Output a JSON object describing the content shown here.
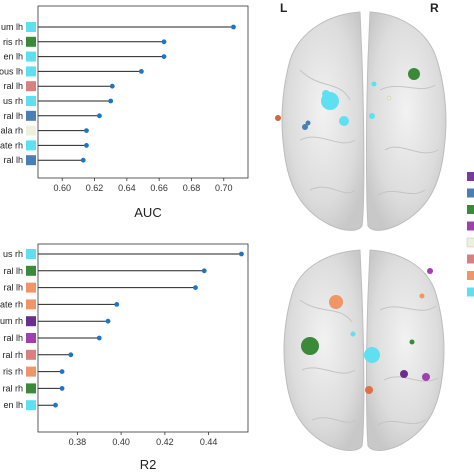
{
  "chart_data": [
    {
      "type": "lollipop",
      "xlabel": "AUC",
      "xlim": [
        0.585,
        0.715
      ],
      "xticks": [
        "0.60",
        "0.62",
        "0.64",
        "0.66",
        "0.68",
        "0.70"
      ],
      "xtick_values": [
        0.6,
        0.62,
        0.64,
        0.66,
        0.68,
        0.7
      ],
      "labels": [
        "um lh",
        "ris rh",
        "en lh",
        "ous lh",
        "ral lh",
        "us rh",
        "ral lh",
        "ala rh",
        "ate rh",
        "ral lh"
      ],
      "values": [
        0.706,
        0.663,
        0.663,
        0.649,
        0.631,
        0.63,
        0.623,
        0.615,
        0.615,
        0.613
      ],
      "swatch_colors": [
        "#5fe0f0",
        "#3a8a3a",
        "#5fe0f0",
        "#5fe0f0",
        "#d98080",
        "#5fe0f0",
        "#4a7fb5",
        "#ecf0dc",
        "#5fe0f0",
        "#4a7fb5"
      ],
      "point_color": "#1f74c6"
    },
    {
      "type": "lollipop",
      "xlabel": "R2",
      "xlim": [
        0.362,
        0.458
      ],
      "xticks": [
        "0.38",
        "0.40",
        "0.42",
        "0.44"
      ],
      "xtick_values": [
        0.38,
        0.4,
        0.42,
        0.44
      ],
      "labels": [
        "us rh",
        "ral lh",
        "ral lh",
        "ate rh",
        "um rh",
        "ral lh",
        "ral rh",
        "ris rh",
        "ral rh",
        "en lh"
      ],
      "values": [
        0.455,
        0.438,
        0.434,
        0.398,
        0.394,
        0.39,
        0.377,
        0.373,
        0.373,
        0.37
      ],
      "swatch_colors": [
        "#5fe0f0",
        "#3a8a3a",
        "#f0946a",
        "#f0946a",
        "#6a2f8a",
        "#a040b0",
        "#d98080",
        "#f0946a",
        "#3a8a3a",
        "#5fe0f0"
      ],
      "point_color": "#1f74c6"
    }
  ],
  "brain_labels": {
    "left": "L",
    "right": "R"
  },
  "legend_swatches": [
    "#7a3a9a",
    "#4a7fb5",
    "#3a8a3a",
    "#a040b0",
    "#ecf0dc",
    "#d98080",
    "#f0946a",
    "#5fe0f0"
  ]
}
